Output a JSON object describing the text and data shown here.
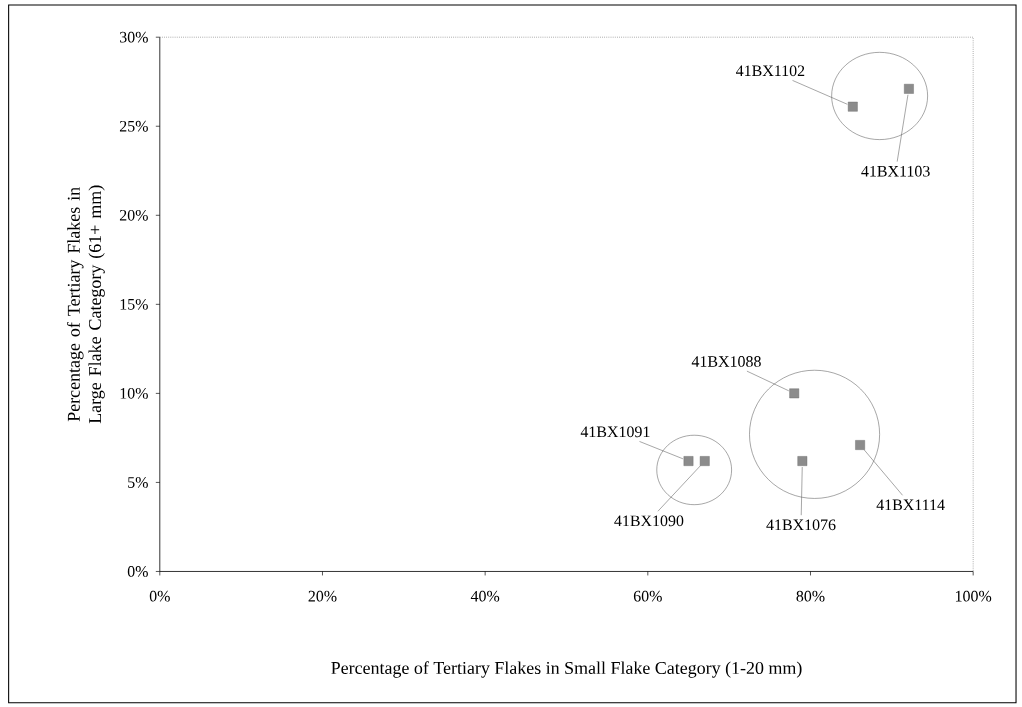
{
  "chart_data": {
    "type": "scatter",
    "xlabel": "Percentage of Tertiary Flakes in Small Flake Category (1-20 mm)",
    "ylabel": "Percentage of Tertiary Flakes in Large Flake Category (61+ mm)",
    "x": [
      65,
      67,
      78,
      79,
      86.1,
      85.2,
      92.1
    ],
    "values": [
      6.2,
      6.2,
      10,
      6.2,
      7.1,
      26.1,
      27.1
    ],
    "color": "#8c8c8c",
    "marker": "square",
    "xlim": [
      0,
      100
    ],
    "ylim": [
      0,
      30
    ],
    "xticks": [
      {
        "value": 0,
        "label": "0%"
      },
      {
        "value": 20,
        "label": "20%"
      },
      {
        "value": 40,
        "label": "40%"
      },
      {
        "value": 60,
        "label": "60%"
      },
      {
        "value": 80,
        "label": "80%"
      },
      {
        "value": 100,
        "label": "100%"
      }
    ],
    "yticks": [
      {
        "value": 0,
        "label": "0%"
      },
      {
        "value": 5,
        "label": "5%"
      },
      {
        "value": 10,
        "label": "10%"
      },
      {
        "value": 15,
        "label": "15%"
      },
      {
        "value": 20,
        "label": "20%"
      },
      {
        "value": 25,
        "label": "25%"
      },
      {
        "value": 30,
        "label": "30%"
      }
    ],
    "annotations": [
      {
        "text": "41BX1091",
        "x": 65,
        "y": 6.2
      },
      {
        "text": "41BX1090",
        "x": 67,
        "y": 6.2
      },
      {
        "text": "41BX1088",
        "x": 78,
        "y": 10
      },
      {
        "text": "41BX1076",
        "x": 79,
        "y": 6.2
      },
      {
        "text": "41BX1114",
        "x": 86.1,
        "y": 7.1
      },
      {
        "text": "41BX1102",
        "x": 85.2,
        "y": 26.1
      },
      {
        "text": "41BX1103",
        "x": 92.1,
        "y": 27.1
      }
    ]
  }
}
